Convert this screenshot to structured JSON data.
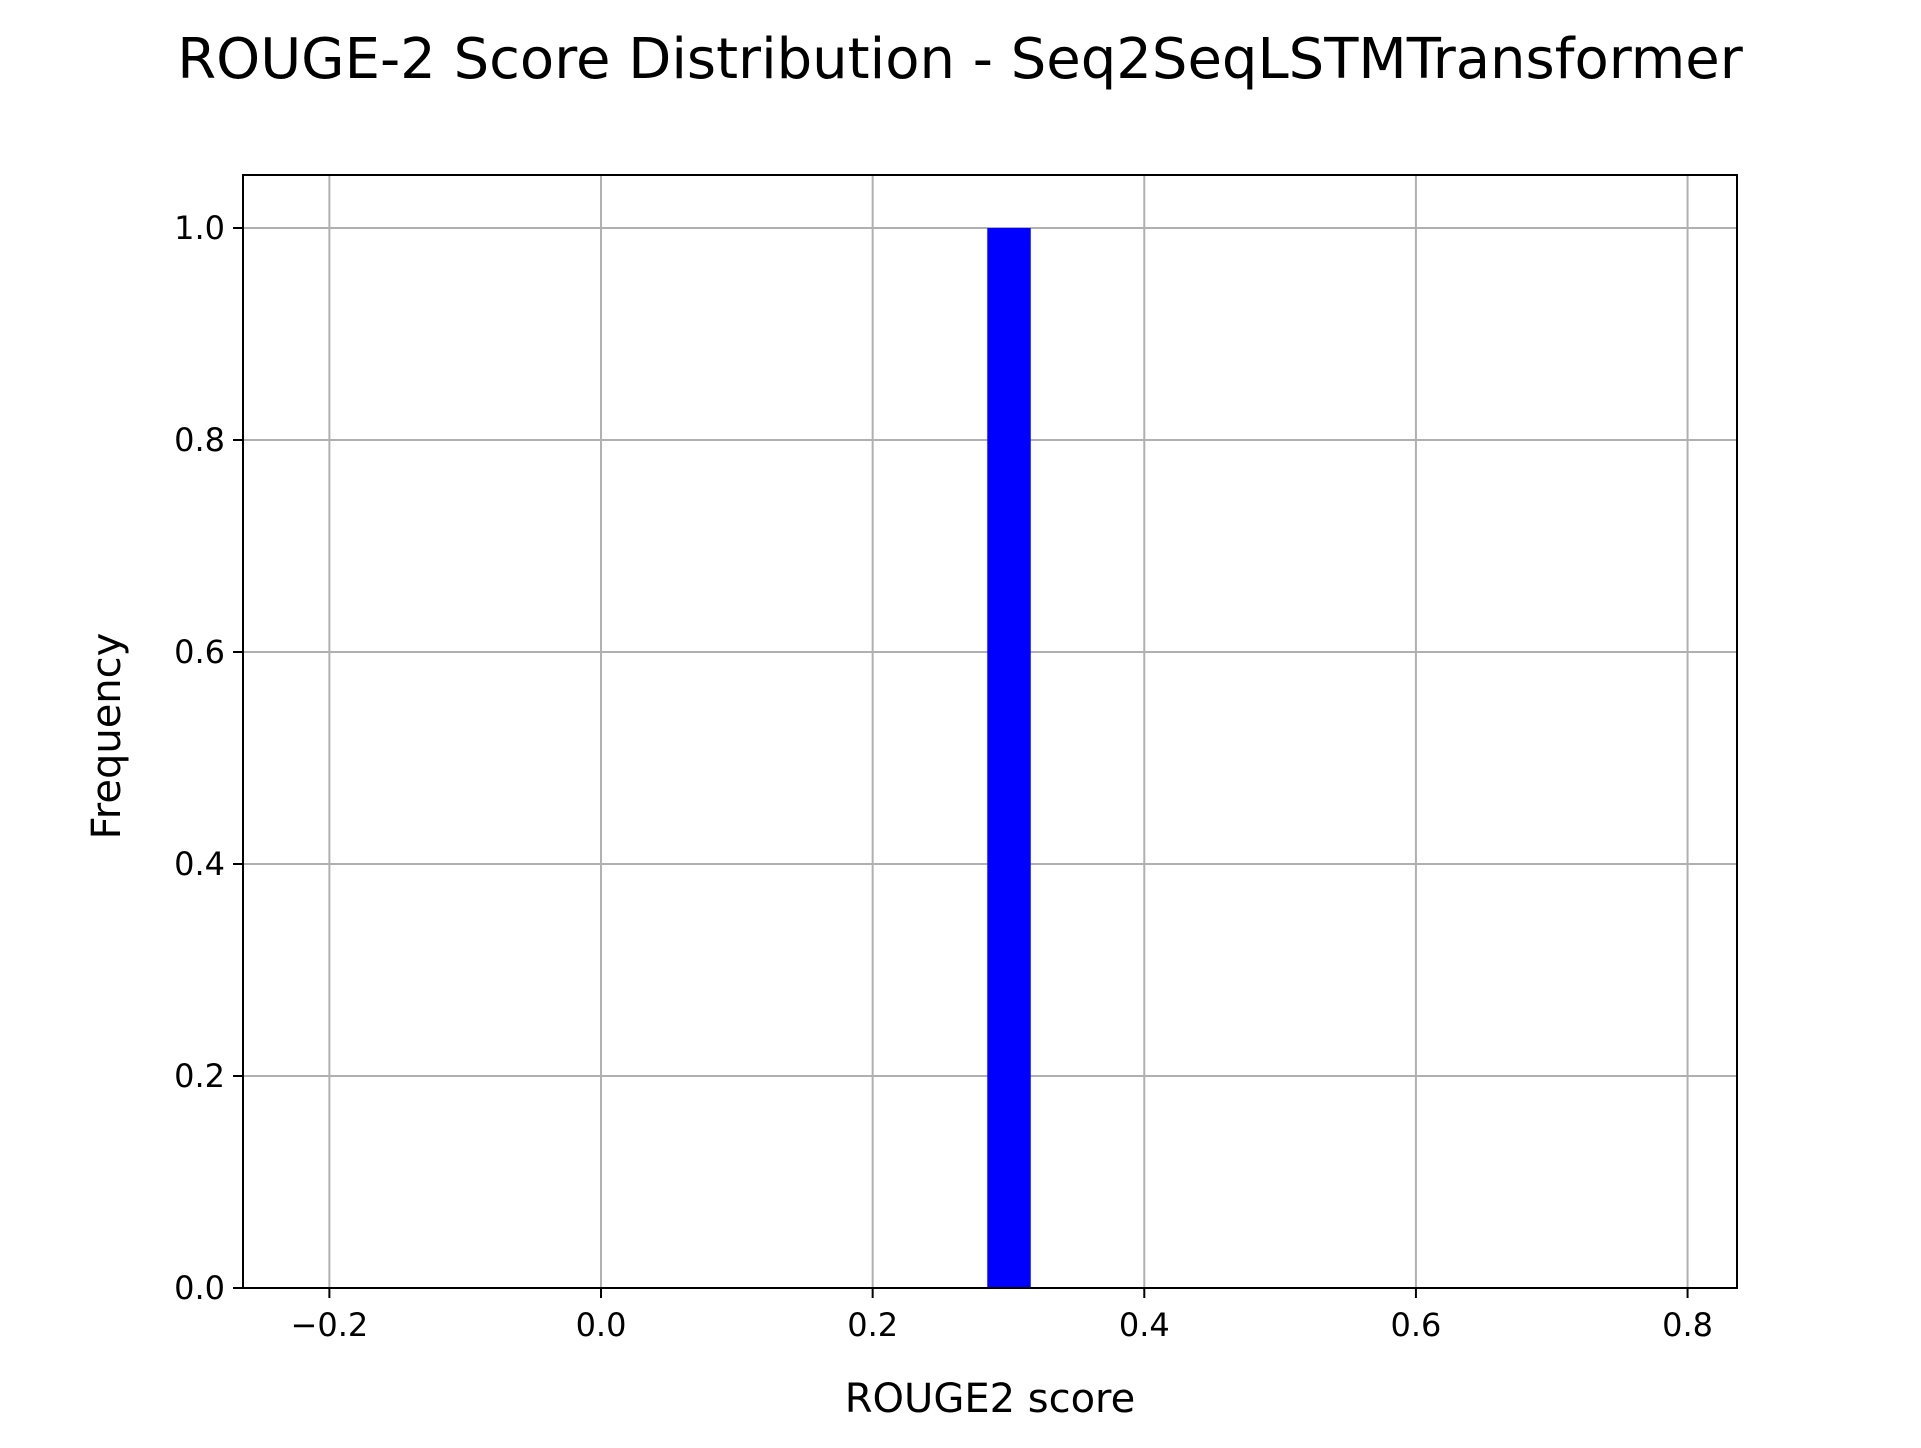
{
  "chart_data": {
    "type": "bar",
    "title": "ROUGE-2 Score Distribution - Seq2SeqLSTMTransformer",
    "xlabel": "ROUGE2 score",
    "ylabel": "Frequency",
    "xlim": [
      -0.2636,
      0.8364
    ],
    "ylim": [
      0,
      1.05
    ],
    "xticks": [
      -0.2,
      0.0,
      0.2,
      0.4,
      0.6,
      0.8
    ],
    "xtick_labels": [
      "−0.2",
      "0.0",
      "0.2",
      "0.4",
      "0.6",
      "0.8"
    ],
    "yticks": [
      0.0,
      0.2,
      0.4,
      0.6,
      0.8,
      1.0
    ],
    "ytick_labels": [
      "0.0",
      "0.2",
      "0.4",
      "0.6",
      "0.8",
      "1.0"
    ],
    "grid": true,
    "bars": [
      {
        "x_start": 0.2844,
        "x_end": 0.3164,
        "value": 1
      }
    ],
    "bar_color": "#0000ff"
  }
}
